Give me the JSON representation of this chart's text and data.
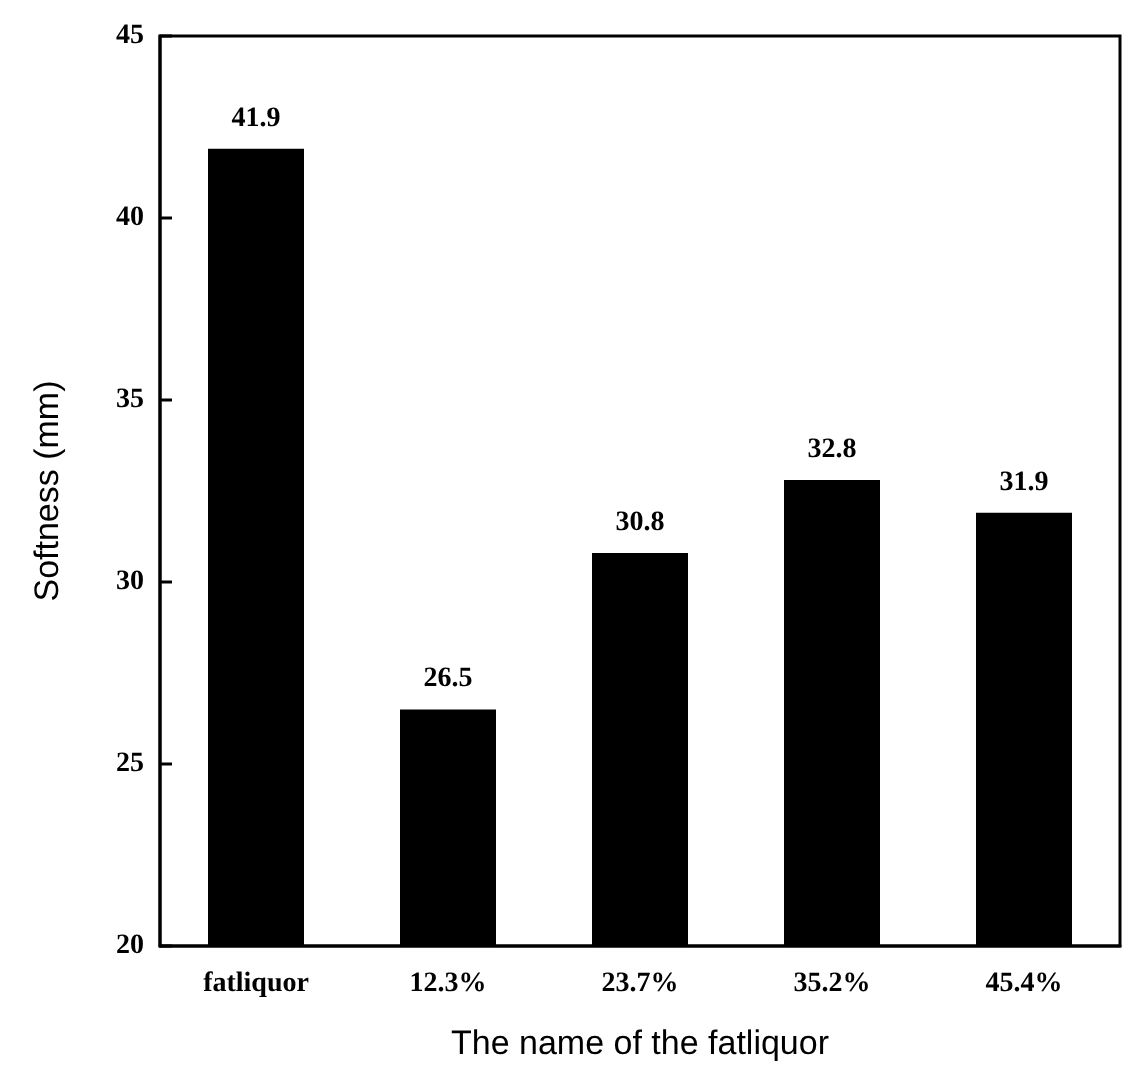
{
  "chart_data": {
    "type": "bar",
    "xlabel": "The name of the fatliquor",
    "ylabel": "Softness (mm)",
    "categories": [
      "fatliquor",
      "12.3%",
      "23.7%",
      "35.2%",
      "45.4%"
    ],
    "values": [
      41.9,
      26.5,
      30.8,
      32.8,
      31.9
    ],
    "color": "#000000",
    "ylim": [
      20,
      45
    ],
    "yticks": [
      20,
      25,
      30,
      35,
      40,
      45
    ],
    "data_labels": true,
    "grid": false
  }
}
